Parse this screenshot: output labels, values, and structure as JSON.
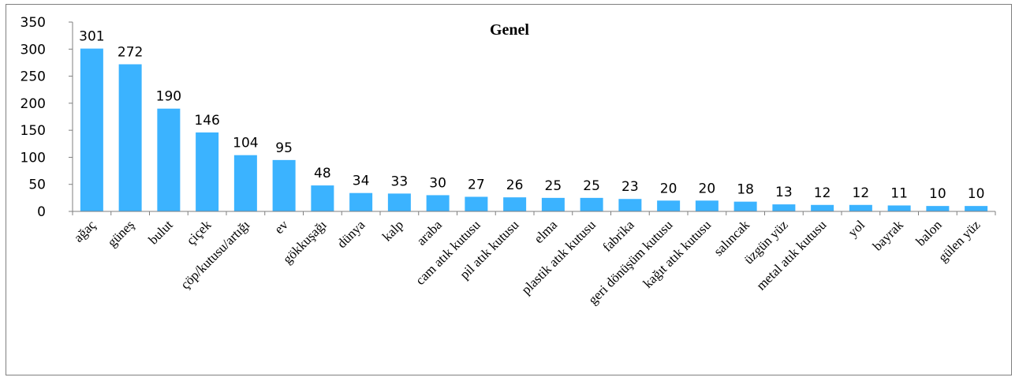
{
  "chart_data": {
    "type": "bar",
    "title": "Genel",
    "xlabel": "",
    "ylabel": "",
    "ylim": [
      0,
      350
    ],
    "yticks": [
      0,
      50,
      100,
      150,
      200,
      250,
      300,
      350
    ],
    "grid": false,
    "legend": "none",
    "bar_color": "#3BB3FF",
    "categories": [
      "ağaç",
      "güneş",
      "bulut",
      "çiçek",
      "çöp/kutusu/artığı",
      "ev",
      "gökkuşağı",
      "dünya",
      "kalp",
      "araba",
      "cam atık kutusu",
      "pil atık kutusu",
      "elma",
      "plastik atık kutusu",
      "fabrika",
      "geri dönüşüm kutusu",
      "kağıt atık kutusu",
      "salıncak",
      "üzgün yüz",
      "metal atık kutusu",
      "yol",
      "bayrak",
      "balon",
      "gülen yüz"
    ],
    "values": [
      301,
      272,
      190,
      146,
      104,
      95,
      48,
      34,
      33,
      30,
      27,
      26,
      25,
      25,
      23,
      20,
      20,
      18,
      13,
      12,
      12,
      11,
      10,
      10
    ]
  }
}
